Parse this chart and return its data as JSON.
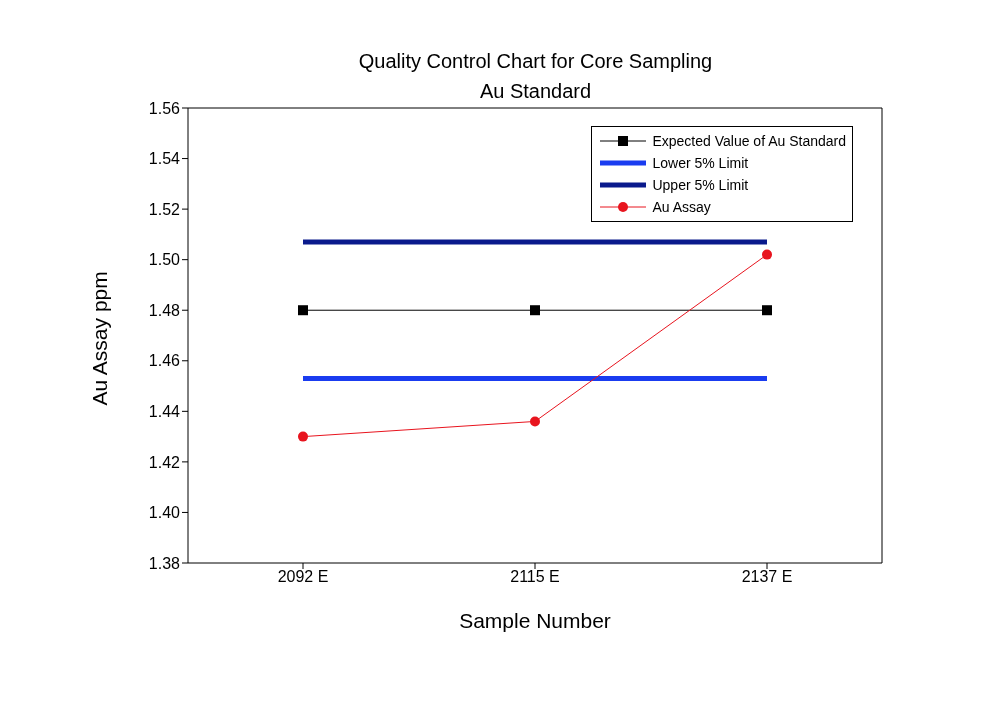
{
  "chart_data": {
    "type": "line",
    "title": "Quality Control Chart for Core Sampling",
    "subtitle": "Au Standard",
    "xlabel": "Sample Number",
    "ylabel": "Au Assay ppm",
    "categories": [
      "2092 E",
      "2115 E",
      "2137 E"
    ],
    "series": [
      {
        "name": "Expected Value of Au Standard",
        "color": "#000000",
        "values": [
          1.48,
          1.48,
          1.48
        ],
        "marker": "square"
      },
      {
        "name": "Lower 5% Limit",
        "color": "#1a3cf0",
        "values": [
          1.453,
          1.453,
          1.453
        ],
        "marker": "none"
      },
      {
        "name": "Upper 5% Limit",
        "color": "#0a1a8c",
        "values": [
          1.507,
          1.507,
          1.507
        ],
        "marker": "none"
      },
      {
        "name": "Au Assay",
        "color": "#e8141e",
        "values": [
          1.43,
          1.436,
          1.502
        ],
        "marker": "circle"
      }
    ],
    "ylim": [
      1.38,
      1.56
    ],
    "yticks": [
      {
        "value": 1.38,
        "label": "1.38"
      },
      {
        "value": 1.4,
        "label": "1.40"
      },
      {
        "value": 1.42,
        "label": "1.42"
      },
      {
        "value": 1.44,
        "label": "1.44"
      },
      {
        "value": 1.46,
        "label": "1.46"
      },
      {
        "value": 1.48,
        "label": "1.48"
      },
      {
        "value": 1.5,
        "label": "1.50"
      },
      {
        "value": 1.52,
        "label": "1.52"
      },
      {
        "value": 1.54,
        "label": "1.54"
      },
      {
        "value": 1.56,
        "label": "1.56"
      }
    ],
    "grid": false,
    "legend": "top right"
  }
}
